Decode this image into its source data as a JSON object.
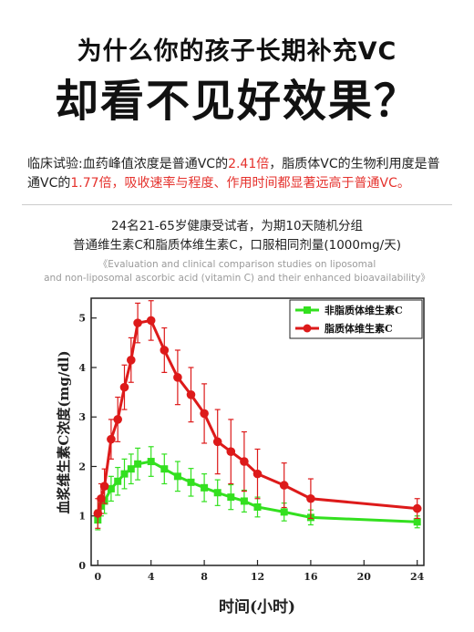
{
  "headline": {
    "line1": "为什么你的孩子长期补充VC",
    "line2": "却看不见好效果？"
  },
  "trial": {
    "p1": "临床试验:血药峰值浓度是普通VC的",
    "v1": "2.41倍",
    "p2": "，脂质体VC的生物利用度是普通VC的",
    "v2": "1.77倍",
    "p3": "，吸收速率与程度、作用时间都显著远高于普通VC。"
  },
  "caption": {
    "line1": "24名21-65岁健康受试者，为期10天随机分组",
    "line2": "普通维生素C和脂质体维生素C，口服相同剂量(1000mg/天)"
  },
  "english_caption": {
    "line1": "《Evaluation and clinical comparison studies on liposomal",
    "line2": "and non-liposomal ascorbic acid (vitamin C) and their enhanced bioavailability》"
  },
  "colors": {
    "non_liposomal": "#33e01f",
    "liposomal": "#dd1a1a",
    "highlight": "#e5322d"
  },
  "chart_data": {
    "type": "line",
    "xlabel": "时间(小时)",
    "ylabel": "血浆维生素C浓度(mg/dl)",
    "xlim": [
      -0.5,
      24.5
    ],
    "ylim": [
      0,
      5.4
    ],
    "xticks": [
      0,
      4,
      8,
      12,
      16,
      20,
      24
    ],
    "yticks": [
      0,
      1,
      2,
      3,
      4,
      5
    ],
    "legend_position": "top-right",
    "grid": false,
    "series": [
      {
        "name": "非脂质体维生素C",
        "marker": "square",
        "x": [
          0,
          0.25,
          0.5,
          1,
          1.5,
          2,
          2.5,
          3,
          4,
          5,
          6,
          7,
          8,
          9,
          10,
          11,
          12,
          14,
          16,
          24
        ],
        "y": [
          0.92,
          1.2,
          1.3,
          1.55,
          1.7,
          1.85,
          1.95,
          2.05,
          2.1,
          1.95,
          1.8,
          1.68,
          1.57,
          1.47,
          1.38,
          1.3,
          1.18,
          1.08,
          0.97,
          0.88
        ],
        "err": [
          0.2,
          0.2,
          0.25,
          0.25,
          0.28,
          0.3,
          0.3,
          0.32,
          0.3,
          0.3,
          0.3,
          0.28,
          0.28,
          0.26,
          0.25,
          0.22,
          0.2,
          0.18,
          0.15,
          0.12
        ]
      },
      {
        "name": "脂质体维生素C",
        "marker": "circle",
        "x": [
          0,
          0.25,
          0.5,
          1,
          1.5,
          2,
          2.5,
          3,
          4,
          5,
          6,
          7,
          8,
          9,
          10,
          11,
          12,
          14,
          16,
          24
        ],
        "y": [
          1.05,
          1.35,
          1.6,
          2.55,
          2.95,
          3.6,
          4.15,
          4.9,
          4.95,
          4.35,
          3.8,
          3.45,
          3.07,
          2.5,
          2.3,
          2.1,
          1.85,
          1.62,
          1.35,
          1.15
        ],
        "err": [
          0.3,
          0.3,
          0.35,
          0.4,
          0.45,
          0.45,
          0.45,
          0.4,
          0.4,
          0.45,
          0.55,
          0.55,
          0.6,
          0.65,
          0.65,
          0.6,
          0.5,
          0.45,
          0.4,
          0.2
        ]
      }
    ]
  }
}
